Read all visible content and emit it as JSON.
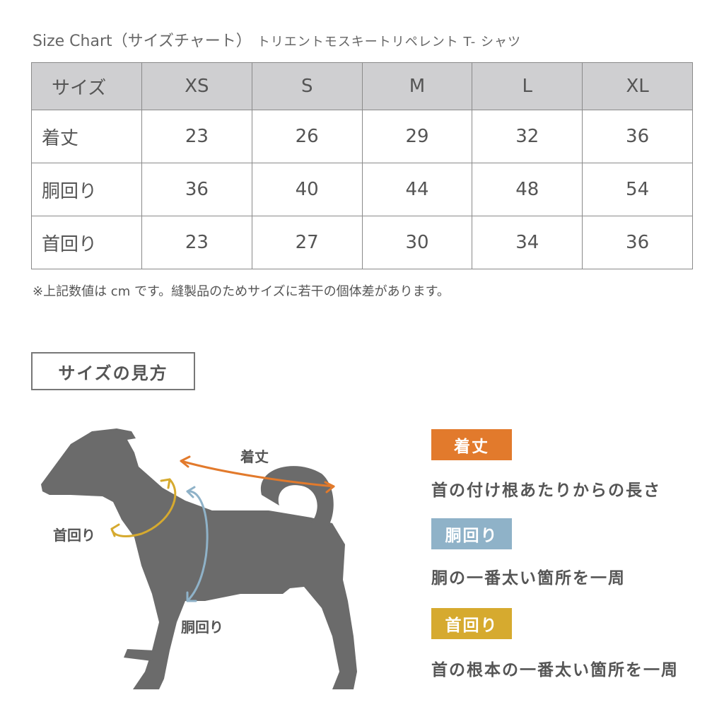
{
  "title": {
    "main": "Size Chart（サイズチャート）",
    "product": "トリエントモスキートリペレント T- シャツ"
  },
  "table": {
    "headers": [
      "サイズ",
      "XS",
      "S",
      "M",
      "L",
      "XL"
    ],
    "rows": [
      {
        "label": "着丈",
        "values": [
          "23",
          "26",
          "29",
          "32",
          "36"
        ]
      },
      {
        "label": "胴回り",
        "values": [
          "36",
          "40",
          "44",
          "48",
          "54"
        ]
      },
      {
        "label": "首回り",
        "values": [
          "23",
          "27",
          "30",
          "34",
          "36"
        ]
      }
    ]
  },
  "note": "※上記数値は cm です。縫製品のためサイズに若干の個体差があります。",
  "howto": {
    "title": "サイズの見方"
  },
  "diagram": {
    "label_length": "着丈",
    "label_neck": "首回り",
    "label_chest": "胴回り"
  },
  "legend": [
    {
      "badge": "着丈",
      "desc": "首の付け根あたりからの長さ",
      "color": "#e27a2c"
    },
    {
      "badge": "胴回り",
      "desc": "胴の一番太い箇所を一周",
      "color": "#8fb2c8"
    },
    {
      "badge": "首回り",
      "desc": "首の根本の一番太い箇所を一周",
      "color": "#d6aa2f"
    }
  ]
}
